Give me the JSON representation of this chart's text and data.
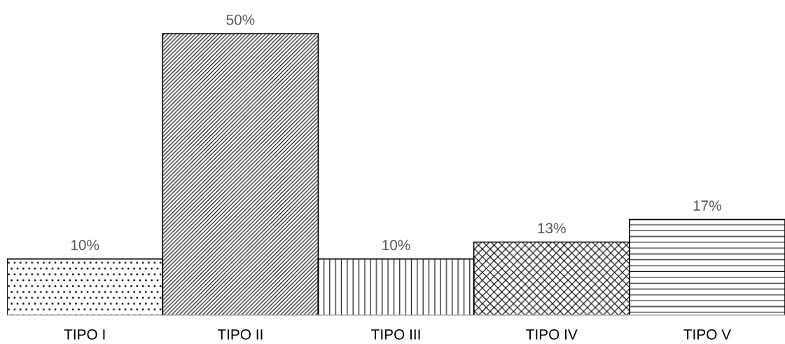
{
  "chart_data": {
    "type": "bar",
    "categories": [
      "TIPO I",
      "TIPO II",
      "TIPO III",
      "TIPO IV",
      "TIPO V"
    ],
    "values": [
      10,
      50,
      10,
      13,
      17
    ],
    "value_labels": [
      "10%",
      "50%",
      "10%",
      "13%",
      "17%"
    ],
    "grid": false,
    "legend": false
  }
}
